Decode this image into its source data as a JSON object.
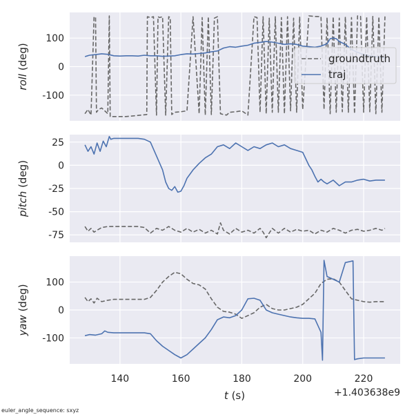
{
  "figure": {
    "footnote": "euler_angle_sequence: sxyz",
    "x_offset_label": "+1.403638e9",
    "xlabel_italic": "t",
    "xlabel_unit": " (s)"
  },
  "chart_data": [
    {
      "type": "line",
      "ylabel_italic": "roll",
      "ylabel_unit": " (deg)",
      "xlim": [
        123.5,
        232
      ],
      "ylim": [
        -190,
        190
      ],
      "yticks": [
        100,
        0,
        -100
      ],
      "xticks": [
        140,
        160,
        180,
        200,
        220
      ],
      "grid": true,
      "legend": {
        "placement": "right",
        "entries": [
          "groundtruth",
          "traj"
        ]
      },
      "series": [
        {
          "name": "groundtruth",
          "style": "dashed",
          "color": "#666666",
          "wraps": true,
          "x": [
            128.5,
            129.5,
            130.5,
            131.5,
            132.0,
            132.3,
            133.0,
            134.0,
            135.0,
            136.0,
            136.5,
            136.8,
            138,
            140,
            142,
            145,
            147,
            148.8,
            149.0,
            150.0,
            151.0,
            152.0,
            152.5,
            153.0,
            154.0,
            155.0,
            156.0,
            156.5,
            157.0,
            158.0,
            160.0,
            162.0,
            164.0,
            166.0,
            167.0,
            168.0,
            169.0,
            170.0,
            171.0,
            172.0,
            173.0,
            174.0,
            175.0,
            176.0,
            178.0,
            180.0,
            182.0,
            184.0,
            185.0,
            186.0,
            187.0,
            188.0,
            189.0,
            190.0,
            191.0,
            192.0,
            193.0,
            194.0,
            195.0,
            196.0,
            197.0,
            198.0,
            199.0,
            200.0,
            202.0,
            204.0,
            206.0,
            207.0,
            208.0,
            209.0,
            210.0,
            211.0,
            212.0,
            213.0,
            214.0,
            215.0,
            216.0,
            217.0,
            218.0,
            219.0,
            220.0,
            221.0,
            222.0,
            223.0,
            224.0,
            225.0,
            226.0,
            227.0
          ],
          "y": [
            -165,
            -150,
            -170,
            175,
            172,
            -160,
            -150,
            -145,
            -155,
            -165,
            178,
            -175,
            -175,
            -175,
            -175,
            -172,
            -170,
            -168,
            175,
            172,
            175,
            -170,
            175,
            172,
            175,
            -170,
            175,
            172,
            -168,
            -160,
            -158,
            -155,
            175,
            -165,
            172,
            -170,
            175,
            -168,
            170,
            175,
            -165,
            -168,
            -170,
            -160,
            -158,
            -155,
            -170,
            175,
            172,
            -160,
            175,
            -165,
            170,
            -160,
            175,
            -160,
            172,
            -165,
            175,
            -155,
            170,
            -160,
            175,
            -150,
            178,
            176,
            175,
            -150,
            172,
            -165,
            175,
            -160,
            170,
            -158,
            175,
            -160,
            172,
            -165,
            178,
            176,
            -160,
            175,
            -158,
            176,
            -165,
            175,
            -160,
            176
          ]
        },
        {
          "name": "traj",
          "style": "solid",
          "color": "#4c72b0",
          "x": [
            128.5,
            130,
            132,
            134,
            136,
            138,
            140,
            142,
            144,
            146,
            148,
            150,
            152,
            154,
            156,
            158,
            160,
            162,
            164,
            166,
            168,
            170,
            172,
            174,
            176,
            178,
            180,
            182,
            184,
            186,
            188,
            190,
            192,
            194,
            196,
            198,
            200,
            202,
            204,
            206,
            208,
            209,
            210,
            211,
            212,
            214,
            216,
            218,
            220,
            222,
            224,
            226,
            227
          ],
          "y": [
            35,
            40,
            42,
            45,
            43,
            38,
            37,
            38,
            38,
            37,
            40,
            38,
            38,
            36,
            37,
            38,
            42,
            45,
            44,
            46,
            48,
            52,
            55,
            65,
            70,
            68,
            72,
            75,
            82,
            85,
            88,
            86,
            82,
            78,
            80,
            78,
            72,
            70,
            68,
            72,
            80,
            98,
            100,
            98,
            88,
            78,
            60,
            50,
            42,
            38,
            35,
            32,
            30
          ]
        }
      ]
    },
    {
      "type": "line",
      "ylabel_italic": "pitch",
      "ylabel_unit": " (deg)",
      "xlim": [
        123.5,
        232
      ],
      "ylim": [
        -83,
        33
      ],
      "yticks": [
        25,
        0,
        -25,
        -50,
        -75
      ],
      "xticks": [
        140,
        160,
        180,
        200,
        220
      ],
      "grid": true,
      "series": [
        {
          "name": "groundtruth",
          "style": "dashed",
          "color": "#666666",
          "x": [
            128.5,
            129.5,
            130.5,
            131.5,
            132.5,
            134,
            136,
            138,
            140,
            142,
            144,
            146,
            148,
            150,
            152,
            154,
            156,
            158,
            160,
            162,
            164,
            166,
            168,
            170,
            172,
            173,
            174,
            176,
            178,
            180,
            182,
            184,
            186,
            187,
            188,
            190,
            192,
            194,
            196,
            198,
            200,
            202,
            204,
            206,
            208,
            210,
            212,
            214,
            216,
            218,
            220,
            222,
            224,
            226,
            227
          ],
          "y": [
            -66,
            -71,
            -68,
            -72,
            -70,
            -67,
            -66,
            -66,
            -66,
            -66,
            -66,
            -66,
            -67,
            -73,
            -68,
            -70,
            -66,
            -70,
            -72,
            -68,
            -72,
            -69,
            -73,
            -70,
            -74,
            -62,
            -70,
            -74,
            -68,
            -72,
            -70,
            -73,
            -68,
            -72,
            -78,
            -68,
            -73,
            -68,
            -72,
            -69,
            -71,
            -70,
            -74,
            -70,
            -72,
            -68,
            -70,
            -73,
            -70,
            -69,
            -71,
            -70,
            -68,
            -70,
            -68
          ]
        },
        {
          "name": "traj",
          "style": "solid",
          "color": "#4c72b0",
          "x": [
            128.5,
            129.5,
            130.5,
            131.5,
            132.5,
            133.5,
            134.5,
            135.5,
            136.5,
            137,
            138,
            140,
            142,
            144,
            146,
            148,
            150,
            152,
            154,
            155,
            156,
            157,
            158,
            159,
            160,
            161,
            162,
            164,
            166,
            168,
            170,
            172,
            174,
            176,
            178,
            180,
            182,
            184,
            186,
            188,
            190,
            192,
            194,
            196,
            198,
            200,
            202,
            203,
            204,
            205,
            206,
            207,
            208,
            210,
            212,
            214,
            216,
            218,
            220,
            222,
            224,
            226,
            227
          ],
          "y": [
            22,
            15,
            20,
            12,
            24,
            15,
            26,
            20,
            31,
            28,
            29,
            29,
            29,
            29,
            29,
            28,
            25,
            10,
            -5,
            -18,
            -25,
            -27,
            -23,
            -29,
            -28,
            -22,
            -14,
            -5,
            2,
            8,
            12,
            20,
            22,
            18,
            24,
            20,
            16,
            20,
            18,
            22,
            24,
            20,
            22,
            18,
            16,
            14,
            0,
            -5,
            -12,
            -18,
            -15,
            -18,
            -20,
            -16,
            -22,
            -18,
            -18,
            -16,
            -15,
            -17,
            -16,
            -16,
            -16
          ]
        }
      ]
    },
    {
      "type": "line",
      "ylabel_italic": "yaw",
      "ylabel_unit": " (deg)",
      "xlim": [
        123.5,
        232
      ],
      "ylim": [
        -193,
        193
      ],
      "yticks": [
        100,
        0,
        -100
      ],
      "xticks": [
        140,
        160,
        180,
        200,
        220
      ],
      "xtick_labels": [
        "140",
        "160",
        "180",
        "200",
        "220"
      ],
      "grid": true,
      "series": [
        {
          "name": "groundtruth",
          "style": "dashed",
          "color": "#666666",
          "x": [
            128.5,
            129.5,
            130.5,
            131.5,
            132.5,
            134,
            136,
            138,
            140,
            142,
            144,
            146,
            148,
            150,
            152,
            154,
            156,
            158,
            160,
            162,
            164,
            166,
            168,
            170,
            172,
            174,
            176,
            178,
            180,
            182,
            184,
            186,
            188,
            190,
            192,
            194,
            196,
            198,
            200,
            202,
            204,
            206,
            208,
            210,
            212,
            214,
            216,
            218,
            220,
            222,
            224,
            226,
            227
          ],
          "y": [
            45,
            30,
            40,
            25,
            42,
            30,
            35,
            38,
            38,
            38,
            38,
            38,
            38,
            45,
            70,
            100,
            120,
            135,
            130,
            110,
            95,
            90,
            75,
            40,
            10,
            -5,
            -8,
            -15,
            -30,
            -20,
            -10,
            10,
            20,
            5,
            0,
            0,
            5,
            10,
            20,
            40,
            60,
            95,
            110,
            112,
            100,
            70,
            40,
            35,
            30,
            28,
            30,
            30,
            30
          ]
        },
        {
          "name": "traj",
          "style": "solid",
          "color": "#4c72b0",
          "x": [
            128.5,
            130,
            132,
            134,
            135,
            136,
            138,
            140,
            142,
            144,
            146,
            148,
            150,
            152,
            154,
            156,
            158,
            160,
            162,
            164,
            166,
            168,
            170,
            172,
            174,
            176,
            178,
            180,
            182,
            184,
            186,
            188,
            190,
            192,
            194,
            196,
            198,
            200,
            202,
            204,
            206,
            206.5,
            207,
            208,
            210,
            212,
            214,
            216,
            216.5,
            217,
            218,
            220,
            222,
            224,
            226,
            227
          ],
          "y": [
            -92,
            -88,
            -90,
            -85,
            -75,
            -80,
            -82,
            -82,
            -82,
            -82,
            -82,
            -82,
            -85,
            -110,
            -130,
            -145,
            -160,
            -172,
            -160,
            -140,
            -120,
            -100,
            -70,
            -35,
            -25,
            -28,
            -20,
            0,
            40,
            42,
            35,
            0,
            -10,
            -15,
            -20,
            -25,
            -28,
            -30,
            -30,
            -32,
            -80,
            -180,
            178,
            120,
            110,
            100,
            170,
            175,
            176,
            -178,
            -175,
            -172,
            -172,
            -172,
            -172,
            -172
          ]
        }
      ]
    }
  ]
}
